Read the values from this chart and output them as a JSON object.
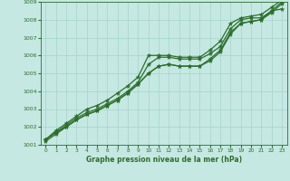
{
  "xlabel": "Graphe pression niveau de la mer (hPa)",
  "ylim": [
    1001,
    1009
  ],
  "xlim": [
    -0.5,
    23.5
  ],
  "yticks": [
    1001,
    1002,
    1003,
    1004,
    1005,
    1006,
    1007,
    1008,
    1009
  ],
  "xticks": [
    0,
    1,
    2,
    3,
    4,
    5,
    6,
    7,
    8,
    9,
    10,
    11,
    12,
    13,
    14,
    15,
    16,
    17,
    18,
    19,
    20,
    21,
    22,
    23
  ],
  "bg_color": "#c5e8e2",
  "grid_color": "#9ecec6",
  "line_color": "#2d6e2d",
  "line_width": 0.9,
  "marker": "*",
  "marker_size": 3.5,
  "series": [
    [
      1001.3,
      1001.7,
      1002.1,
      1002.5,
      1002.8,
      1003.0,
      1003.3,
      1003.6,
      1004.0,
      1004.5,
      1005.5,
      1005.9,
      1005.9,
      1005.8,
      1005.8,
      1005.8,
      1006.1,
      1006.5,
      1007.5,
      1008.0,
      1008.1,
      1008.1,
      1008.5,
      1008.6
    ],
    [
      1001.3,
      1001.7,
      1002.0,
      1002.4,
      1002.7,
      1002.9,
      1003.2,
      1003.5,
      1003.9,
      1004.4,
      1005.0,
      1005.4,
      1005.5,
      1005.4,
      1005.4,
      1005.4,
      1005.8,
      1006.3,
      1007.3,
      1007.8,
      1007.9,
      1008.0,
      1008.5,
      1009.0
    ],
    [
      1001.3,
      1001.8,
      1002.2,
      1002.6,
      1003.0,
      1003.2,
      1003.5,
      1003.9,
      1004.3,
      1004.8,
      1006.0,
      1006.0,
      1006.0,
      1005.9,
      1005.9,
      1005.9,
      1006.3,
      1006.8,
      1007.8,
      1008.1,
      1008.2,
      1008.3,
      1008.7,
      1009.1
    ],
    [
      1001.2,
      1001.6,
      1002.0,
      1002.4,
      1002.7,
      1002.9,
      1003.2,
      1003.5,
      1003.9,
      1004.4,
      1005.0,
      1005.4,
      1005.5,
      1005.4,
      1005.4,
      1005.4,
      1005.7,
      1006.2,
      1007.2,
      1007.8,
      1007.9,
      1008.0,
      1008.4,
      1008.9
    ]
  ]
}
